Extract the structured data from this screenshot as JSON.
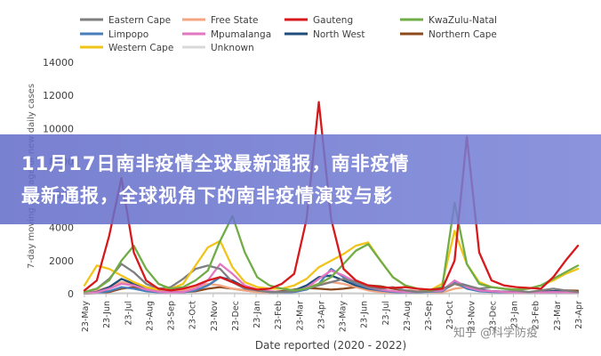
{
  "banner": {
    "line1": "11月17日南非疫情全球最新通报，南非疫情",
    "line2": "最新通报，全球视角下的南非疫情演变与影"
  },
  "watermark": "知乎 @科学防疫",
  "chart_data": {
    "type": "line",
    "xlabel": "Date reported (2020 - 2022)",
    "ylabel": "7-day moving average of new daily cases",
    "ylim": [
      0,
      14000
    ],
    "yticks": [
      0,
      2000,
      4000,
      6000,
      8000,
      10000,
      12000,
      14000
    ],
    "xtick_labels": [
      "23-May",
      "23-Jun",
      "23-Jul",
      "23-Aug",
      "23-Sep",
      "23-Oct",
      "23-Nov",
      "23-Dec",
      "23-Jan",
      "23-Feb",
      "23-Mar",
      "23-Apr",
      "23-May",
      "23-Jun",
      "23-Jul",
      "23-Aug",
      "23-Sep",
      "23-Oct",
      "23-Nov",
      "23-Dec",
      "23-Jan",
      "23-Feb",
      "23-Mar",
      "23-Apr"
    ],
    "legend_placement": "top",
    "series": [
      {
        "name": "Eastern Cape",
        "color": "#7f7f7f",
        "values": [
          100,
          300,
          900,
          1800,
          1300,
          600,
          300,
          400,
          900,
          1500,
          1700,
          1500,
          700,
          300,
          200,
          100,
          100,
          150,
          300,
          500,
          700,
          900,
          700,
          400,
          300,
          400,
          200,
          100,
          150,
          300,
          600,
          500,
          300,
          400,
          300,
          200,
          100,
          200,
          300,
          200,
          100
        ]
      },
      {
        "name": "Free State",
        "color": "#f4a582",
        "values": [
          50,
          200,
          400,
          700,
          600,
          300,
          150,
          100,
          200,
          400,
          600,
          500,
          300,
          200,
          100,
          80,
          100,
          200,
          400,
          600,
          700,
          600,
          400,
          200,
          100,
          50,
          100,
          150,
          100,
          80,
          300,
          400,
          200,
          150,
          100,
          80,
          60,
          80,
          100,
          80,
          60
        ]
      },
      {
        "name": "Gauteng",
        "color": "#d7191c",
        "values": [
          200,
          800,
          3500,
          7000,
          2500,
          800,
          300,
          200,
          300,
          500,
          800,
          1000,
          700,
          400,
          250,
          300,
          600,
          1200,
          4500,
          11600,
          4500,
          1500,
          800,
          500,
          400,
          350,
          400,
          300,
          250,
          300,
          2000,
          9500,
          2500,
          800,
          500,
          400,
          350,
          300,
          1000,
          2000,
          2900
        ]
      },
      {
        "name": "KwaZulu-Natal",
        "color": "#70ad47",
        "values": [
          100,
          300,
          800,
          2000,
          2900,
          1500,
          600,
          300,
          400,
          800,
          1400,
          3200,
          4700,
          2500,
          1000,
          500,
          300,
          200,
          300,
          600,
          1000,
          1800,
          2600,
          3000,
          2000,
          1000,
          500,
          300,
          200,
          400,
          5500,
          1800,
          600,
          400,
          300,
          250,
          300,
          500,
          900,
          1300,
          1700
        ]
      },
      {
        "name": "Limpopo",
        "color": "#4a7ebb",
        "values": [
          20,
          50,
          150,
          400,
          300,
          150,
          80,
          60,
          80,
          200,
          500,
          1000,
          700,
          400,
          200,
          100,
          60,
          100,
          250,
          600,
          1500,
          1000,
          600,
          350,
          200,
          100,
          60,
          80,
          120,
          150,
          700,
          300,
          150,
          100,
          80,
          60,
          50,
          60,
          80,
          60,
          50
        ]
      },
      {
        "name": "Mpumalanga",
        "color": "#e377c2",
        "values": [
          30,
          80,
          300,
          600,
          500,
          250,
          120,
          80,
          100,
          300,
          800,
          1800,
          1200,
          500,
          250,
          150,
          100,
          150,
          350,
          900,
          1400,
          1100,
          700,
          400,
          250,
          150,
          100,
          120,
          150,
          200,
          800,
          400,
          200,
          150,
          100,
          80,
          60,
          80,
          100,
          80,
          60
        ]
      },
      {
        "name": "North West",
        "color": "#1f4e79",
        "values": [
          30,
          100,
          400,
          900,
          600,
          250,
          120,
          80,
          100,
          200,
          500,
          1000,
          800,
          400,
          200,
          120,
          100,
          200,
          500,
          1000,
          1100,
          800,
          500,
          300,
          200,
          120,
          100,
          120,
          150,
          150,
          700,
          500,
          250,
          150,
          120,
          100,
          80,
          100,
          150,
          120,
          100
        ]
      },
      {
        "name": "Northern Cape",
        "color": "#8c4b1f",
        "values": [
          10,
          30,
          100,
          300,
          400,
          300,
          150,
          100,
          100,
          150,
          300,
          400,
          300,
          200,
          120,
          100,
          150,
          250,
          350,
          300,
          250,
          300,
          400,
          500,
          450,
          300,
          200,
          150,
          150,
          200,
          600,
          400,
          200,
          150,
          120,
          100,
          80,
          100,
          150,
          200,
          180
        ]
      },
      {
        "name": "Western Cape",
        "color": "#f0c419",
        "values": [
          500,
          1700,
          1500,
          1100,
          700,
          400,
          250,
          300,
          600,
          1700,
          2800,
          3200,
          1600,
          700,
          400,
          300,
          300,
          500,
          900,
          1600,
          2000,
          2400,
          2900,
          3100,
          2000,
          1000,
          500,
          300,
          200,
          600,
          3800,
          1800,
          700,
          400,
          300,
          250,
          300,
          500,
          800,
          1200,
          1500
        ]
      },
      {
        "name": "Unknown",
        "color": "#d9d9d9",
        "values": [
          5,
          10,
          20,
          30,
          30,
          20,
          15,
          10,
          10,
          20,
          30,
          40,
          30,
          20,
          15,
          10,
          10,
          15,
          20,
          30,
          30,
          30,
          25,
          20,
          15,
          10,
          10,
          10,
          10,
          15,
          30,
          25,
          15,
          10,
          10,
          10,
          10,
          10,
          10,
          10,
          10
        ]
      }
    ]
  }
}
